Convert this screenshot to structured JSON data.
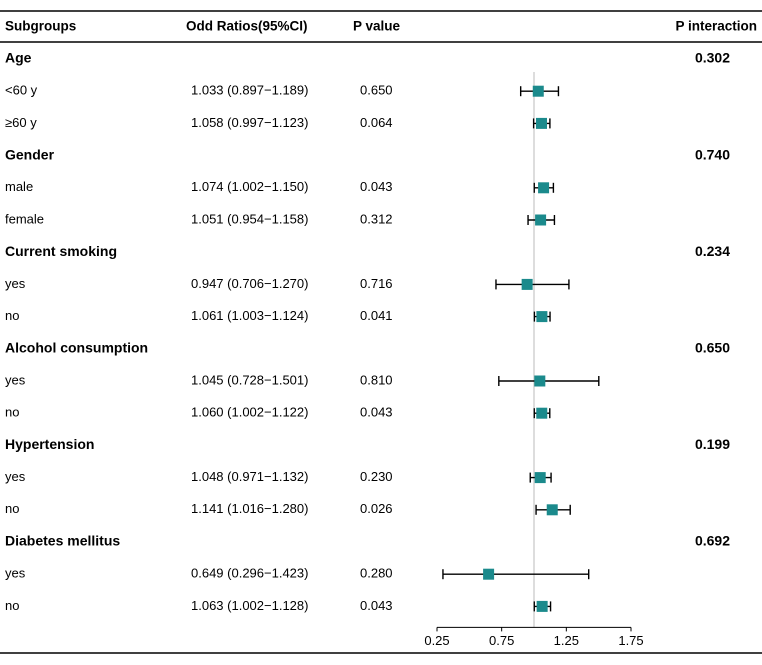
{
  "chart_data": {
    "type": "forest",
    "headers": [
      "Subgroups",
      "Odd Ratios(95%CI)",
      "P value",
      "P interaction"
    ],
    "groups": [
      {
        "name": "Age",
        "p_interaction": "0.302",
        "rows": [
          {
            "label": "<60 y",
            "value": 1.033,
            "lower": 0.897,
            "upper": 1.189,
            "value_label": "1.033 (0.897−1.189)",
            "p": "0.650"
          },
          {
            "label": "≥60 y",
            "value": 1.058,
            "lower": 0.997,
            "upper": 1.123,
            "value_label": "1.058 (0.997−1.123)",
            "p": "0.064"
          }
        ]
      },
      {
        "name": "Gender",
        "p_interaction": "0.740",
        "rows": [
          {
            "label": "male",
            "value": 1.074,
            "lower": 1.002,
            "upper": 1.15,
            "value_label": "1.074 (1.002−1.150)",
            "p": "0.043"
          },
          {
            "label": "female",
            "value": 1.051,
            "lower": 0.954,
            "upper": 1.158,
            "value_label": "1.051 (0.954−1.158)",
            "p": "0.312"
          }
        ]
      },
      {
        "name": "Current smoking",
        "p_interaction": "0.234",
        "rows": [
          {
            "label": "yes",
            "value": 0.947,
            "lower": 0.706,
            "upper": 1.27,
            "value_label": "0.947 (0.706−1.270)",
            "p": "0.716"
          },
          {
            "label": "no",
            "value": 1.061,
            "lower": 1.003,
            "upper": 1.124,
            "value_label": "1.061 (1.003−1.124)",
            "p": "0.041"
          }
        ]
      },
      {
        "name": "Alcohol consumption",
        "p_interaction": "0.650",
        "rows": [
          {
            "label": "yes",
            "value": 1.045,
            "lower": 0.728,
            "upper": 1.501,
            "value_label": "1.045 (0.728−1.501)",
            "p": "0.810"
          },
          {
            "label": "no",
            "value": 1.06,
            "lower": 1.002,
            "upper": 1.122,
            "value_label": "1.060 (1.002−1.122)",
            "p": "0.043"
          }
        ]
      },
      {
        "name": "Hypertension",
        "p_interaction": "0.199",
        "rows": [
          {
            "label": "yes",
            "value": 1.048,
            "lower": 0.971,
            "upper": 1.132,
            "value_label": "1.048 (0.971−1.132)",
            "p": "0.230"
          },
          {
            "label": "no",
            "value": 1.141,
            "lower": 1.016,
            "upper": 1.28,
            "value_label": "1.141 (1.016−1.280)",
            "p": "0.026"
          }
        ]
      },
      {
        "name": "Diabetes mellitus",
        "p_interaction": "0.692",
        "rows": [
          {
            "label": "yes",
            "value": 0.649,
            "lower": 0.296,
            "upper": 1.423,
            "value_label": "0.649 (0.296−1.423)",
            "p": "0.280"
          },
          {
            "label": "no",
            "value": 1.063,
            "lower": 1.002,
            "upper": 1.128,
            "value_label": "1.063 (1.002−1.128)",
            "p": "0.043"
          }
        ]
      }
    ],
    "xlim": [
      0.25,
      1.75
    ],
    "xticks": [
      0.25,
      0.75,
      1.25,
      1.75
    ],
    "ref_line": 1,
    "color": "#1b8a8c"
  }
}
